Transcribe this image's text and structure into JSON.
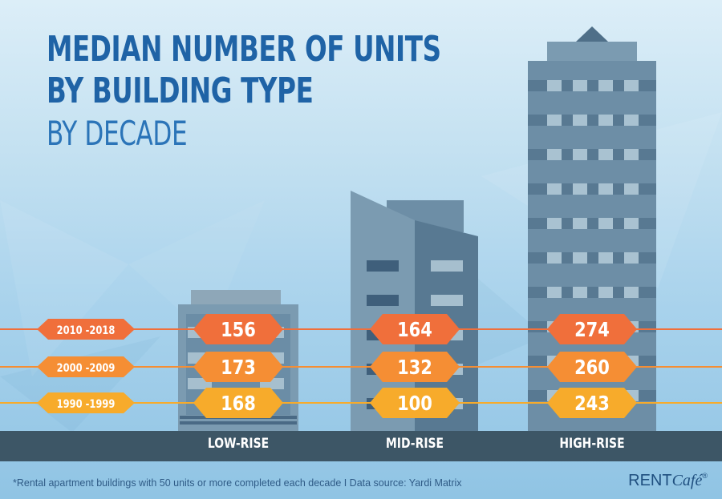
{
  "title": {
    "line1": "MEDIAN NUMBER OF UNITS",
    "line2": "BY BUILDING TYPE",
    "line3": "BY DECADE"
  },
  "chart_data": {
    "type": "table",
    "title": "MEDIAN NUMBER OF UNITS BY BUILDING TYPE BY DECADE",
    "categories": [
      "LOW-RISE",
      "MID-RISE",
      "HIGH-RISE"
    ],
    "series": [
      {
        "name": "2010 -2018",
        "values": [
          156,
          164,
          274
        ],
        "color": "#f06f3b"
      },
      {
        "name": "2000 -2009",
        "values": [
          173,
          132,
          260
        ],
        "color": "#f58e34"
      },
      {
        "name": "1990 -1999",
        "values": [
          168,
          100,
          243
        ],
        "color": "#f7ab2b"
      }
    ]
  },
  "footnote": "*Rental apartment buildings with 50 units or more completed each decade  I  Data source: Yardi Matrix",
  "brand": {
    "main": "RENT",
    "script": "Café",
    "mark": "®"
  },
  "colors": {
    "title": "#1f63a6",
    "ground": "#3d5666",
    "building_light": "#7b9bb1",
    "building_dark": "#587992",
    "window": "#3f5f7b"
  }
}
